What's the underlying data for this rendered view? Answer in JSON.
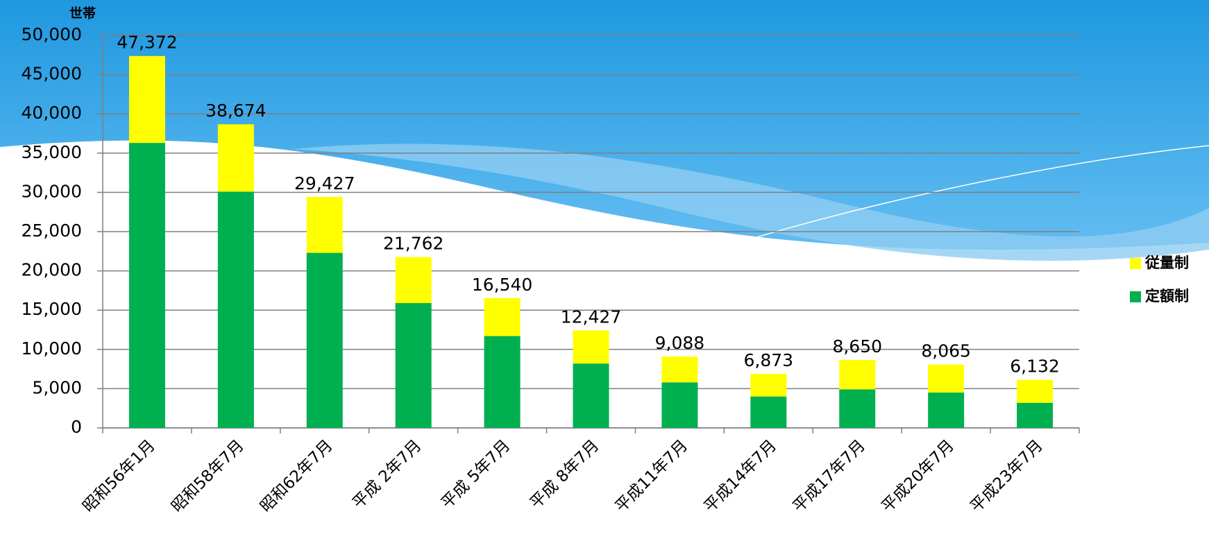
{
  "chart_data": {
    "type": "stacked-bar",
    "y_label": "世帯",
    "categories": [
      "昭和56年1月",
      "昭和58年7月",
      "昭和62年7月",
      "平成 2年7月",
      "平成 5年7月",
      "平成 8年7月",
      "平成11年7月",
      "平成14年7月",
      "平成17年7月",
      "平成20年7月",
      "平成23年7月"
    ],
    "series": [
      {
        "name": "定額制",
        "color": "#00b050",
        "values": [
          36300,
          30100,
          22300,
          15900,
          11700,
          8200,
          5800,
          4000,
          4900,
          4500,
          3200
        ]
      },
      {
        "name": "従量制",
        "color": "#ffff00",
        "values": [
          11072,
          8574,
          7127,
          5862,
          4840,
          4227,
          3288,
          2873,
          3750,
          3565,
          2932
        ]
      }
    ],
    "totals": [
      47372,
      38674,
      29427,
      21762,
      16540,
      12427,
      9088,
      6873,
      8650,
      8065,
      6132
    ],
    "total_labels": [
      "47,372",
      "38,674",
      "29,427",
      "21,762",
      "16,540",
      "12,427",
      "9,088",
      "6,873",
      "8,650",
      "8,065",
      "6,132"
    ],
    "ylim": [
      0,
      50000
    ],
    "yticks": [
      0,
      {
        "value": 5000,
        "label": "5,000"
      },
      {
        "value": 10000,
        "label": "10,000"
      },
      {
        "value": 15000,
        "label": "15,000"
      },
      {
        "value": 20000,
        "label": "20,000"
      },
      {
        "value": 25000,
        "label": "25,000"
      },
      {
        "value": 30000,
        "label": "30,000"
      },
      {
        "value": 35000,
        "label": "35,000"
      },
      {
        "value": 40000,
        "label": "40,000"
      },
      {
        "value": 45000,
        "label": "45,000"
      },
      {
        "value": 50000,
        "label": "50,000"
      }
    ],
    "grid": true,
    "legend": "right"
  }
}
